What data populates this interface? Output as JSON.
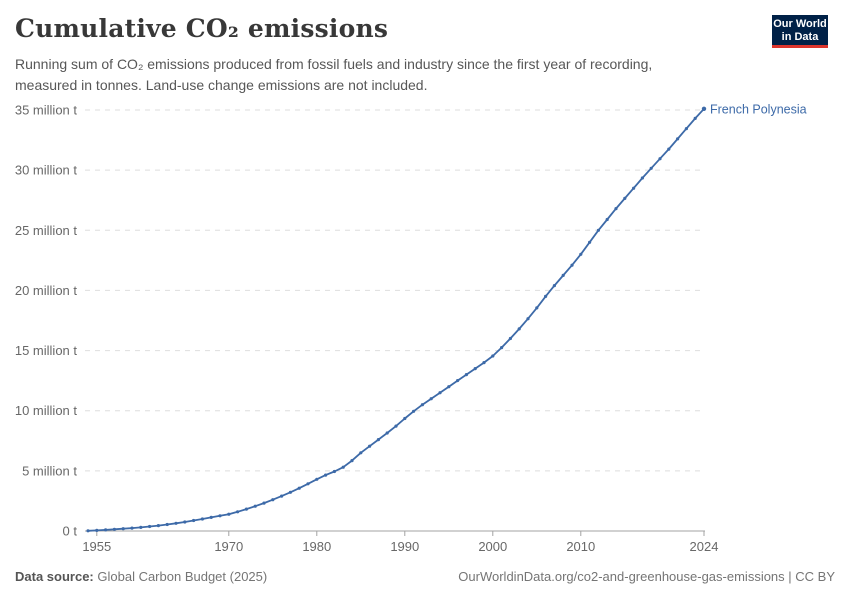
{
  "header": {
    "title": "Cumulative CO₂ emissions",
    "subtitle": "Running sum of CO₂ emissions produced from fossil fuels and industry since the first year of recording, measured in tonnes. Land-use change emissions are not included.",
    "logo": {
      "line1": "Our World",
      "line2": "in Data",
      "bg_color": "#002147",
      "accent_color": "#dc352d"
    }
  },
  "chart_data": {
    "type": "line",
    "title": "Cumulative CO₂ emissions",
    "unit": "tonnes",
    "line_color": "#3d6aa8",
    "grid": "dashed horizontal",
    "legend_position": "end-of-line label",
    "xlim": [
      1954,
      2024
    ],
    "ylim": [
      0,
      35
    ],
    "x_ticks": [
      1955,
      1970,
      1980,
      1990,
      2000,
      2010,
      2024
    ],
    "y_ticks": [
      {
        "value": 0,
        "label": "0 t"
      },
      {
        "value": 5,
        "label": "5 million t"
      },
      {
        "value": 10,
        "label": "10 million t"
      },
      {
        "value": 15,
        "label": "15 million t"
      },
      {
        "value": 20,
        "label": "20 million t"
      },
      {
        "value": 25,
        "label": "25 million t"
      },
      {
        "value": 30,
        "label": "30 million t"
      },
      {
        "value": 35,
        "label": "35 million t"
      }
    ],
    "series": [
      {
        "name": "French Polynesia",
        "unit": "million t",
        "x": [
          1954,
          1955,
          1956,
          1957,
          1958,
          1959,
          1960,
          1961,
          1962,
          1963,
          1964,
          1965,
          1966,
          1967,
          1968,
          1969,
          1970,
          1971,
          1972,
          1973,
          1974,
          1975,
          1976,
          1977,
          1978,
          1979,
          1980,
          1981,
          1982,
          1983,
          1984,
          1985,
          1986,
          1987,
          1988,
          1989,
          1990,
          1991,
          1992,
          1993,
          1994,
          1995,
          1996,
          1997,
          1998,
          1999,
          2000,
          2001,
          2002,
          2003,
          2004,
          2005,
          2006,
          2007,
          2008,
          2009,
          2010,
          2011,
          2012,
          2013,
          2014,
          2015,
          2016,
          2017,
          2018,
          2019,
          2020,
          2021,
          2022,
          2023,
          2024
        ],
        "values": [
          0.02,
          0.05,
          0.09,
          0.14,
          0.19,
          0.24,
          0.3,
          0.37,
          0.45,
          0.54,
          0.64,
          0.75,
          0.87,
          1.0,
          1.13,
          1.26,
          1.4,
          1.6,
          1.82,
          2.06,
          2.32,
          2.6,
          2.9,
          3.22,
          3.56,
          3.92,
          4.3,
          4.65,
          4.95,
          5.3,
          5.85,
          6.5,
          7.05,
          7.6,
          8.15,
          8.72,
          9.35,
          9.95,
          10.5,
          11.0,
          11.5,
          12.0,
          12.5,
          13.0,
          13.5,
          14.0,
          14.55,
          15.25,
          16.0,
          16.8,
          17.65,
          18.55,
          19.5,
          20.4,
          21.25,
          22.1,
          23.0,
          24.0,
          25.0,
          25.9,
          26.8,
          27.65,
          28.5,
          29.35,
          30.15,
          30.95,
          31.75,
          32.6,
          33.45,
          34.3,
          35.1
        ]
      }
    ]
  },
  "footer": {
    "source_label": "Data source:",
    "source_value": "Global Carbon Budget (2025)",
    "link": "OurWorldinData.org/co2-and-greenhouse-gas-emissions | CC BY"
  }
}
